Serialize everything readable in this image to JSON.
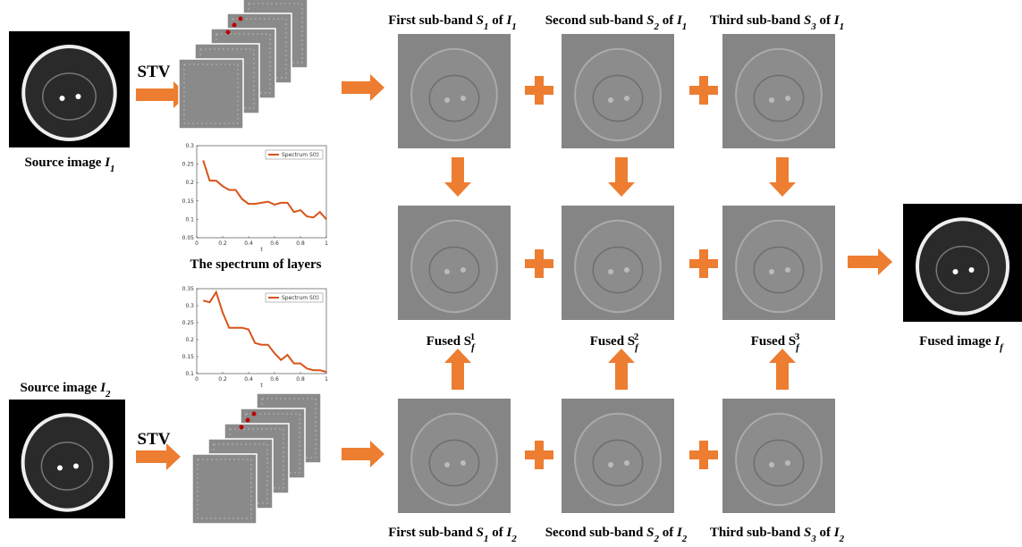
{
  "stv_1": "STV",
  "stv_2": "STV",
  "source_1": {
    "label": [
      {
        "text": "Source image ",
        "style": "n"
      },
      {
        "text": "I",
        "style": "i"
      },
      {
        "text": "1",
        "style": "sub"
      }
    ]
  },
  "source_2": {
    "label": [
      {
        "text": "Source image ",
        "style": "n"
      },
      {
        "text": "I",
        "style": "i"
      },
      {
        "text": "2",
        "style": "sub"
      }
    ]
  },
  "top_row": [
    {
      "title": [
        {
          "text": "First sub-band ",
          "style": "n"
        },
        {
          "text": "S",
          "style": "i"
        },
        {
          "text": "1",
          "style": "sub"
        },
        {
          "text": " of ",
          "style": "n"
        },
        {
          "text": "I",
          "style": "i"
        },
        {
          "text": "1",
          "style": "sub"
        }
      ]
    },
    {
      "title": [
        {
          "text": "Second sub-band ",
          "style": "n"
        },
        {
          "text": "S",
          "style": "i"
        },
        {
          "text": "2",
          "style": "sub"
        },
        {
          "text": " of ",
          "style": "n"
        },
        {
          "text": "I",
          "style": "i"
        },
        {
          "text": "1",
          "style": "sub"
        }
      ]
    },
    {
      "title": [
        {
          "text": "Third sub-band ",
          "style": "n"
        },
        {
          "text": "S",
          "style": "i"
        },
        {
          "text": "3",
          "style": "sub"
        },
        {
          "text": " of ",
          "style": "n"
        },
        {
          "text": "I",
          "style": "i"
        },
        {
          "text": "1",
          "style": "sub"
        }
      ]
    }
  ],
  "fused_row": [
    {
      "label": [
        {
          "text": "Fused ",
          "style": "n"
        },
        {
          "text": "S",
          "style": "n"
        },
        {
          "text": "f",
          "style": "sub"
        },
        {
          "text": "1",
          "style": "sup"
        }
      ]
    },
    {
      "label": [
        {
          "text": "Fused ",
          "style": "n"
        },
        {
          "text": "S",
          "style": "n"
        },
        {
          "text": "f",
          "style": "sub"
        },
        {
          "text": "2",
          "style": "sup"
        }
      ]
    },
    {
      "label": [
        {
          "text": "Fused ",
          "style": "n"
        },
        {
          "text": "S",
          "style": "n"
        },
        {
          "text": "f",
          "style": "sub"
        },
        {
          "text": "3",
          "style": "sup"
        }
      ]
    }
  ],
  "bottom_row": [
    {
      "title": [
        {
          "text": "First sub-band ",
          "style": "n"
        },
        {
          "text": "S",
          "style": "i"
        },
        {
          "text": "1",
          "style": "sub"
        },
        {
          "text": " of ",
          "style": "n"
        },
        {
          "text": "I",
          "style": "i"
        },
        {
          "text": "2",
          "style": "sub"
        }
      ]
    },
    {
      "title": [
        {
          "text": "Second sub-band ",
          "style": "n"
        },
        {
          "text": "S",
          "style": "i"
        },
        {
          "text": "2",
          "style": "sub"
        },
        {
          "text": " of ",
          "style": "n"
        },
        {
          "text": "I",
          "style": "i"
        },
        {
          "text": "2",
          "style": "sub"
        }
      ]
    },
    {
      "title": [
        {
          "text": "Third sub-band ",
          "style": "n"
        },
        {
          "text": "S",
          "style": "i"
        },
        {
          "text": "3",
          "style": "sub"
        },
        {
          "text": " of ",
          "style": "n"
        },
        {
          "text": "I",
          "style": "i"
        },
        {
          "text": "2",
          "style": "sub"
        }
      ]
    }
  ],
  "fused_image": {
    "label": [
      {
        "text": "Fused image ",
        "style": "n"
      },
      {
        "text": "I",
        "style": "i"
      },
      {
        "text": "f",
        "style": "sub"
      }
    ]
  },
  "spectrum_caption": "The spectrum of layers",
  "charts": [
    {
      "type": "line",
      "x_label": "t",
      "legend_position": "upper right",
      "series": [
        {
          "name": "Spectrum S(t)",
          "color": "#D95319",
          "x": [
            0.05,
            0.1,
            0.15,
            0.2,
            0.25,
            0.3,
            0.35,
            0.4,
            0.45,
            0.5,
            0.55,
            0.6,
            0.65,
            0.7,
            0.75,
            0.8,
            0.85,
            0.9,
            0.95,
            1
          ],
          "values": [
            0.26,
            0.205,
            0.205,
            0.19,
            0.18,
            0.18,
            0.155,
            0.142,
            0.142,
            0.145,
            0.148,
            0.14,
            0.145,
            0.145,
            0.12,
            0.125,
            0.108,
            0.105,
            0.12,
            0.1
          ]
        }
      ],
      "xlim": [
        0,
        1
      ],
      "xticks": [
        0,
        0.2,
        0.4,
        0.6,
        0.8,
        1
      ],
      "ylim": [
        0.05,
        0.3
      ],
      "yticks": [
        0.05,
        0.1,
        0.15,
        0.2,
        0.25,
        0.3
      ]
    },
    {
      "type": "line",
      "x_label": "t",
      "legend_position": "upper right",
      "series": [
        {
          "name": "Spectrum S(t)",
          "color": "#D95319",
          "x": [
            0.05,
            0.1,
            0.15,
            0.2,
            0.25,
            0.3,
            0.35,
            0.4,
            0.45,
            0.5,
            0.55,
            0.6,
            0.65,
            0.7,
            0.75,
            0.8,
            0.85,
            0.9,
            0.95,
            1
          ],
          "values": [
            0.315,
            0.31,
            0.34,
            0.28,
            0.235,
            0.235,
            0.235,
            0.23,
            0.19,
            0.185,
            0.185,
            0.16,
            0.14,
            0.155,
            0.13,
            0.13,
            0.115,
            0.11,
            0.11,
            0.105
          ]
        }
      ],
      "xlim": [
        0,
        1
      ],
      "xticks": [
        0,
        0.2,
        0.4,
        0.6,
        0.8,
        1
      ],
      "ylim": [
        0.1,
        0.35
      ],
      "yticks": [
        0.1,
        0.15,
        0.2,
        0.25,
        0.3,
        0.35
      ]
    }
  ]
}
